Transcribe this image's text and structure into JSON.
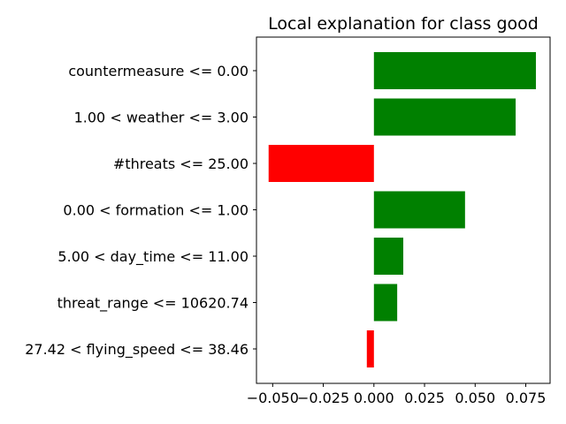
{
  "chart_data": {
    "type": "bar",
    "orientation": "horizontal",
    "title": "Local explanation for class good",
    "xlabel": "",
    "ylabel": "",
    "categories": [
      "countermeasure <= 0.00",
      "1.00 < weather <= 3.00",
      "#threats <= 25.00",
      "0.00 < formation <= 1.00",
      "5.00 < day_time <= 11.00",
      "threat_range <= 10620.74",
      "27.42 < flying_speed <= 38.46"
    ],
    "values": [
      0.08,
      0.07,
      -0.052,
      0.045,
      0.0145,
      0.0115,
      -0.0035
    ],
    "xlim": [
      -0.058,
      0.087
    ],
    "xticks": [
      -0.05,
      -0.025,
      0.0,
      0.025,
      0.05,
      0.075
    ],
    "xtick_labels": [
      "−0.050",
      "−0.025",
      "0.000",
      "0.025",
      "0.050",
      "0.075"
    ],
    "grid": false,
    "colors": {
      "positive": "#008000",
      "negative": "#ff0000"
    }
  }
}
